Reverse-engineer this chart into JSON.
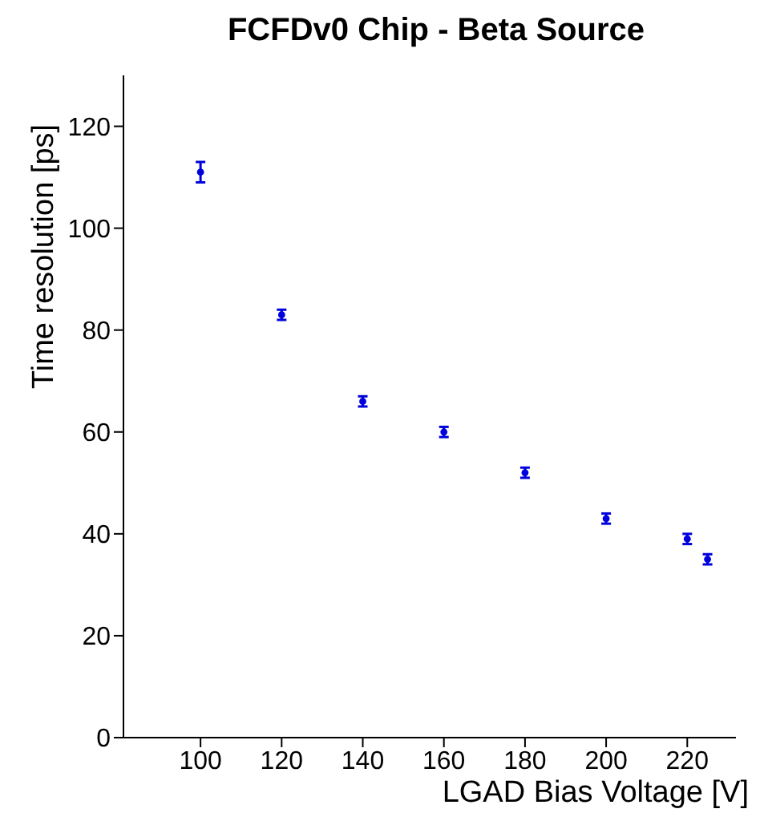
{
  "chart_data": {
    "type": "scatter",
    "title": "FCFDv0 Chip - Beta Source",
    "xlabel": "LGAD Bias Voltage [V]",
    "ylabel": "Time resolution [ps]",
    "x": [
      100,
      120,
      140,
      160,
      180,
      200,
      220,
      225
    ],
    "values": [
      111,
      83,
      66,
      60,
      52,
      43,
      39,
      35
    ],
    "errors": [
      2,
      1,
      1,
      1,
      1,
      1,
      1,
      1
    ],
    "color": "#0000dd",
    "marker": "circle",
    "xlim": [
      81,
      232
    ],
    "xticks": [
      100,
      120,
      140,
      160,
      180,
      200,
      220
    ],
    "ylim": [
      0,
      130
    ],
    "yticks": [
      0,
      20,
      40,
      60,
      80,
      100,
      120
    ]
  }
}
